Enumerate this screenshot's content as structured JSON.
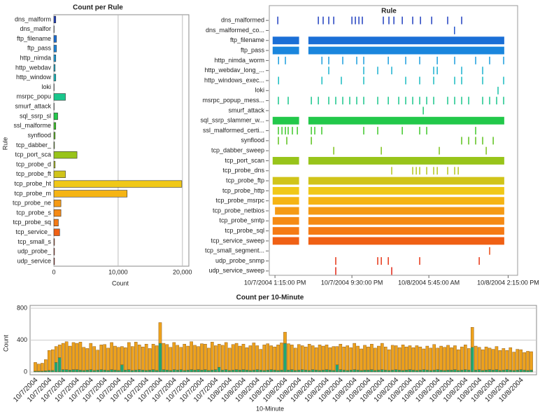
{
  "chart_data": [
    {
      "type": "barh",
      "title": "Count per Rule",
      "x_label": "Count",
      "y_label": "Rule",
      "categories": [
        "dns_malform",
        "dns_malfor",
        "ftp_filename",
        "ftp_pass",
        "http_nimda",
        "http_webdav",
        "http_window",
        "loki",
        "msrpc_popu",
        "smurf_attack",
        "sql_ssrp_sl",
        "ssl_malforme",
        "synflood",
        "tcp_dabber_",
        "tcp_port_sca",
        "tcp_probe_d",
        "tcp_probe_ft",
        "tcp_probe_ht",
        "tcp_probe_m",
        "tcp_probe_ne",
        "tcp_probe_s",
        "tcp_probe_sq",
        "tcp_service_",
        "tcp_small_s",
        "udp_probe_",
        "udp_service"
      ],
      "values": [
        300,
        50,
        400,
        400,
        300,
        200,
        300,
        50,
        1800,
        50,
        600,
        300,
        200,
        100,
        3600,
        200,
        1800,
        19900,
        11400,
        1100,
        1100,
        700,
        900,
        100,
        100,
        100
      ],
      "colors": [
        "#1f3fbf",
        "#2255cc",
        "#1a6fd6",
        "#1a86dd",
        "#1a9edd",
        "#1ab0d0",
        "#18bcc0",
        "#18c0a8",
        "#19c68c",
        "#1cc870",
        "#22c84a",
        "#3ec82a",
        "#5cc21c",
        "#7cc21a",
        "#98c41a",
        "#b4c61a",
        "#d0c41a",
        "#f0c818",
        "#f5b414",
        "#f59a14",
        "#f58a14",
        "#f57a14",
        "#f06014",
        "#ec4a14",
        "#e63414",
        "#e02414"
      ],
      "xlim": [
        0,
        21000
      ],
      "xticks": [
        0,
        {
          "value": 10000,
          "label": "10,000"
        },
        {
          "value": 20000,
          "label": "20,000"
        }
      ],
      "grid": true
    },
    {
      "type": "timeline",
      "title": "Rule",
      "xlim": [
        "2004-10-07T12:52",
        "2004-10-08T15:16"
      ],
      "xticks": [
        {
          "value": "2004-10-07T13:15",
          "label": "10/7/2004 1:15:00 PM"
        },
        {
          "value": "2004-10-07T21:30",
          "label": "10/7/2004 9:30:00 PM"
        },
        {
          "value": "2004-10-08T05:45",
          "label": "10/8/2004 5:45:00 AM"
        },
        {
          "value": "2004-10-08T14:15",
          "label": "10/8/2004 2:15:00 PM"
        }
      ],
      "rows": [
        {
          "name": "dns_malformed",
          "events": [
            "2004-10-07T13:33",
            "2004-10-07T17:54",
            "2004-10-07T18:25",
            "2004-10-07T19:01",
            "2004-10-07T19:33",
            "2004-10-07T21:30",
            "2004-10-07T21:52",
            "2004-10-07T22:15",
            "2004-10-07T22:37",
            "2004-10-08T00:52",
            "2004-10-08T01:28",
            "2004-10-08T02:00",
            "2004-10-08T02:54",
            "2004-10-08T04:01",
            "2004-10-08T04:51",
            "2004-10-08T06:03",
            "2004-10-08T07:46",
            "2004-10-08T09:16"
          ]
        },
        {
          "name": "dns_malformed_co...",
          "events": [
            "2004-10-08T08:30"
          ]
        },
        {
          "name": "ftp_filename",
          "spans": [
            [
              "2004-10-07T13:00",
              "2004-10-07T15:50"
            ],
            [
              "2004-10-07T16:50",
              "2004-10-08T13:50"
            ]
          ]
        },
        {
          "name": "ftp_pass",
          "spans": [
            [
              "2004-10-07T13:00",
              "2004-10-07T15:50"
            ],
            [
              "2004-10-07T16:50",
              "2004-10-08T13:50"
            ]
          ]
        },
        {
          "name": "http_nimda_worm",
          "events": [
            "2004-10-07T13:38",
            "2004-10-07T14:22",
            "2004-10-07T18:17",
            "2004-10-07T19:01",
            "2004-10-07T20:31",
            "2004-10-07T22:01",
            "2004-10-07T22:46",
            "2004-10-08T01:24",
            "2004-10-08T03:16",
            "2004-10-08T04:46",
            "2004-10-08T06:39",
            "2004-10-08T08:31",
            "2004-10-08T10:46",
            "2004-10-08T12:16",
            "2004-10-08T13:46"
          ]
        },
        {
          "name": "http_webdav_long_...",
          "events": [
            "2004-10-07T19:01",
            "2004-10-07T22:46",
            "2004-10-08T00:16",
            "2004-10-08T01:46",
            "2004-10-08T06:16",
            "2004-10-08T06:39",
            "2004-10-08T09:16",
            "2004-10-08T11:31"
          ]
        },
        {
          "name": "http_windows_exec...",
          "events": [
            "2004-10-07T13:38",
            "2004-10-07T18:17",
            "2004-10-07T20:22",
            "2004-10-07T22:46",
            "2004-10-08T03:16",
            "2004-10-08T04:46",
            "2004-10-08T06:16",
            "2004-10-08T08:31",
            "2004-10-08T09:16",
            "2004-10-08T11:31",
            "2004-10-08T13:46"
          ]
        },
        {
          "name": "loki",
          "events": [
            "2004-10-08T13:10"
          ]
        },
        {
          "name": "msrpc_popup_mess...",
          "events": [
            "2004-10-07T13:37",
            "2004-10-07T14:40",
            "2004-10-07T17:09",
            "2004-10-07T17:54",
            "2004-10-07T19:01",
            "2004-10-07T19:46",
            "2004-10-07T20:31",
            "2004-10-07T21:16",
            "2004-10-07T22:01",
            "2004-10-07T22:46",
            "2004-10-08T00:16",
            "2004-10-08T01:24",
            "2004-10-08T02:31",
            "2004-10-08T03:16",
            "2004-10-08T04:01",
            "2004-10-08T04:46",
            "2004-10-08T05:31",
            "2004-10-08T06:16",
            "2004-10-08T07:46",
            "2004-10-08T08:31",
            "2004-10-08T09:16",
            "2004-10-08T10:01",
            "2004-10-08T11:31",
            "2004-10-08T12:16",
            "2004-10-08T13:01",
            "2004-10-08T13:46"
          ]
        },
        {
          "name": "smurf_attack",
          "events": [
            "2004-10-08T05:09"
          ]
        },
        {
          "name": "sql_ssrp_slammer_w...",
          "spans": [
            [
              "2004-10-07T13:00",
              "2004-10-07T15:50"
            ],
            [
              "2004-10-07T16:50",
              "2004-10-08T13:50"
            ]
          ]
        },
        {
          "name": "ssl_malformed_certi...",
          "events": [
            "2004-10-07T13:37",
            "2004-10-07T14:00",
            "2004-10-07T14:22",
            "2004-10-07T14:40",
            "2004-10-07T15:07",
            "2004-10-07T15:39",
            "2004-10-07T17:09",
            "2004-10-07T17:31",
            "2004-10-07T18:16",
            "2004-10-07T22:46",
            "2004-10-08T00:16",
            "2004-10-08T02:54",
            "2004-10-08T04:46",
            "2004-10-08T05:31",
            "2004-10-08T10:46"
          ]
        },
        {
          "name": "synflood",
          "events": [
            "2004-10-07T13:37",
            "2004-10-07T14:31",
            "2004-10-07T17:09",
            "2004-10-08T09:16",
            "2004-10-08T10:01",
            "2004-10-08T10:46",
            "2004-10-08T11:31",
            "2004-10-08T12:39"
          ]
        },
        {
          "name": "tcp_dabber_sweep",
          "events": [
            "2004-10-07T19:33",
            "2004-10-08T00:39",
            "2004-10-08T06:52",
            "2004-10-08T11:54"
          ]
        },
        {
          "name": "tcp_port_scan",
          "spans": [
            [
              "2004-10-07T13:00",
              "2004-10-07T15:50"
            ],
            [
              "2004-10-07T16:50",
              "2004-10-08T13:50"
            ]
          ]
        },
        {
          "name": "tcp_probe_dns",
          "events": [
            "2004-10-08T01:46",
            "2004-10-08T04:01",
            "2004-10-08T04:24",
            "2004-10-08T04:46",
            "2004-10-08T05:31",
            "2004-10-08T06:16",
            "2004-10-08T06:39",
            "2004-10-08T07:46",
            "2004-10-08T08:31",
            "2004-10-08T08:54"
          ]
        },
        {
          "name": "tcp_probe_ftp",
          "spans": [
            [
              "2004-10-07T13:00",
              "2004-10-07T15:50"
            ],
            [
              "2004-10-07T16:50",
              "2004-10-08T13:50"
            ]
          ]
        },
        {
          "name": "tcp_probe_http",
          "spans": [
            [
              "2004-10-07T13:00",
              "2004-10-07T15:50"
            ],
            [
              "2004-10-07T16:50",
              "2004-10-08T13:50"
            ]
          ]
        },
        {
          "name": "tcp_probe_msrpc",
          "spans": [
            [
              "2004-10-07T13:00",
              "2004-10-07T15:50"
            ],
            [
              "2004-10-07T16:50",
              "2004-10-08T13:50"
            ]
          ]
        },
        {
          "name": "tcp_probe_netbios",
          "spans": [
            [
              "2004-10-07T13:15",
              "2004-10-07T15:50"
            ],
            [
              "2004-10-07T16:50",
              "2004-10-08T13:50"
            ]
          ]
        },
        {
          "name": "tcp_probe_smtp",
          "spans": [
            [
              "2004-10-07T13:00",
              "2004-10-07T15:50"
            ],
            [
              "2004-10-07T16:50",
              "2004-10-08T13:50"
            ]
          ]
        },
        {
          "name": "tcp_probe_sql",
          "spans": [
            [
              "2004-10-07T13:00",
              "2004-10-07T15:50"
            ],
            [
              "2004-10-07T16:50",
              "2004-10-08T13:50"
            ]
          ]
        },
        {
          "name": "tcp_service_sweep",
          "spans": [
            [
              "2004-10-07T13:00",
              "2004-10-07T15:50"
            ],
            [
              "2004-10-07T16:50",
              "2004-10-08T13:50"
            ]
          ]
        },
        {
          "name": "tcp_small_segment...",
          "events": [
            "2004-10-08T12:16"
          ]
        },
        {
          "name": "udp_probe_snmp",
          "events": [
            "2004-10-07T19:46",
            "2004-10-08T00:16",
            "2004-10-08T00:39",
            "2004-10-08T01:24",
            "2004-10-08T04:46",
            "2004-10-08T11:09"
          ]
        },
        {
          "name": "udp_service_sweep",
          "events": [
            "2004-10-07T19:46",
            "2004-10-08T01:46"
          ]
        }
      ]
    },
    {
      "type": "stacked_bar",
      "title": "Count per 10-Minute",
      "x_label": "10-Minute",
      "y_label": "Count",
      "categories": [
        "10/7/2004",
        null,
        null,
        null,
        "10/7/2004",
        null,
        null,
        null,
        "10/7/2004",
        null,
        null,
        null,
        "10/7/2004",
        null,
        null,
        null,
        "10/7/2004",
        null,
        null,
        null,
        "10/7/2004",
        null,
        null,
        null,
        "10/7/2004",
        null,
        null,
        null,
        "10/7/2004",
        null,
        null,
        null,
        "10/7/2004",
        null,
        null,
        null,
        "10/7/2004",
        null,
        null,
        null,
        "10/7/2004",
        null,
        null,
        null,
        "10/7/2004",
        null,
        null,
        null,
        "10/7/2004",
        null,
        null,
        null,
        "10/7/2004",
        null,
        null,
        null,
        "10/8/2004",
        null,
        null,
        null,
        "10/8/2004",
        null,
        null,
        null,
        "10/8/2004",
        null,
        null,
        null,
        "10/8/2004",
        null,
        null,
        null,
        "10/8/2004",
        null,
        null,
        null,
        "10/8/2004",
        null,
        null,
        null,
        "10/8/2004",
        null,
        null,
        null,
        "10/8/2004",
        null,
        null,
        null,
        "10/8/2004",
        null,
        null,
        null,
        "10/8/2004",
        null,
        null,
        null,
        "10/8/2004",
        null,
        null,
        null,
        "10/8/2004",
        null,
        null,
        null,
        "10/8/2004",
        null,
        null,
        null,
        "10/8/2004",
        null,
        null,
        null,
        "10/8/2004",
        null,
        null,
        null,
        "10/8/2004",
        null,
        null,
        null,
        "10/8/2004",
        null,
        null,
        null,
        "10/8/2004",
        null,
        null,
        null,
        "10/8/2004",
        null,
        null,
        null,
        "10/8/2004",
        null,
        null,
        null,
        "10/8/2004",
        null,
        null,
        null,
        "10/8/2004",
        null,
        null,
        null
      ],
      "series": [
        {
          "color": "#1fa872",
          "values": [
            10,
            10,
            10,
            15,
            20,
            20,
            120,
            180,
            30,
            30,
            25,
            30,
            30,
            25,
            20,
            25,
            30,
            20,
            25,
            30,
            25,
            20,
            30,
            25,
            20,
            90,
            25,
            30,
            20,
            25,
            30,
            25,
            20,
            25,
            30,
            20,
            360,
            30,
            25,
            20,
            30,
            25,
            30,
            20,
            25,
            30,
            25,
            30,
            25,
            30,
            20,
            25,
            30,
            60,
            25,
            30,
            20,
            25,
            30,
            25,
            30,
            25,
            20,
            25,
            30,
            25,
            20,
            25,
            30,
            25,
            20,
            25,
            360,
            25,
            30,
            20,
            25,
            30,
            25,
            20,
            30,
            25,
            20,
            25,
            30,
            25,
            20,
            90,
            30,
            25,
            20,
            25,
            30,
            25,
            20,
            25,
            25,
            30,
            20,
            25,
            30,
            25,
            20,
            25,
            30,
            25,
            20,
            25,
            30,
            25,
            20,
            25,
            30,
            25,
            20,
            25,
            30,
            25,
            20,
            25,
            25,
            30,
            20,
            25,
            30,
            25,
            310,
            25,
            30,
            20,
            25,
            30,
            25,
            30,
            20,
            25,
            30,
            25,
            20,
            25,
            30,
            25,
            20,
            25
          ]
        },
        {
          "color": "#eea21c",
          "values": [
            110,
            90,
            100,
            140,
            250,
            260,
            200,
            160,
            330,
            350,
            300,
            340,
            330,
            350,
            290,
            270,
            330,
            300,
            250,
            310,
            320,
            280,
            340,
            300,
            290,
            230,
            280,
            340,
            300,
            350,
            310,
            290,
            330,
            270,
            320,
            310,
            260,
            330,
            320,
            290,
            340,
            310,
            280,
            330,
            300,
            350,
            310,
            290,
            330,
            320,
            280,
            350,
            300,
            290,
            310,
            340,
            280,
            320,
            330,
            300,
            320,
            280,
            310,
            340,
            300,
            260,
            320,
            330,
            300,
            290,
            320,
            340,
            140,
            330,
            310,
            280,
            320,
            300,
            290,
            330,
            300,
            280,
            320,
            300,
            310,
            280,
            300,
            230,
            320,
            290,
            310,
            280,
            330,
            300,
            270,
            310,
            290,
            320,
            280,
            300,
            330,
            290,
            260,
            310,
            300,
            280,
            320,
            290,
            300,
            280,
            310,
            290,
            260,
            300,
            280,
            320,
            270,
            300,
            290,
            310,
            280,
            300,
            260,
            290,
            310,
            270,
            250,
            300,
            280,
            260,
            290,
            270,
            260,
            290,
            250,
            270,
            240,
            280,
            230,
            260,
            250,
            220,
            240,
            230
          ]
        }
      ],
      "ylim": [
        0,
        800
      ],
      "yticks": [
        0,
        400,
        800
      ],
      "grid": true
    }
  ]
}
